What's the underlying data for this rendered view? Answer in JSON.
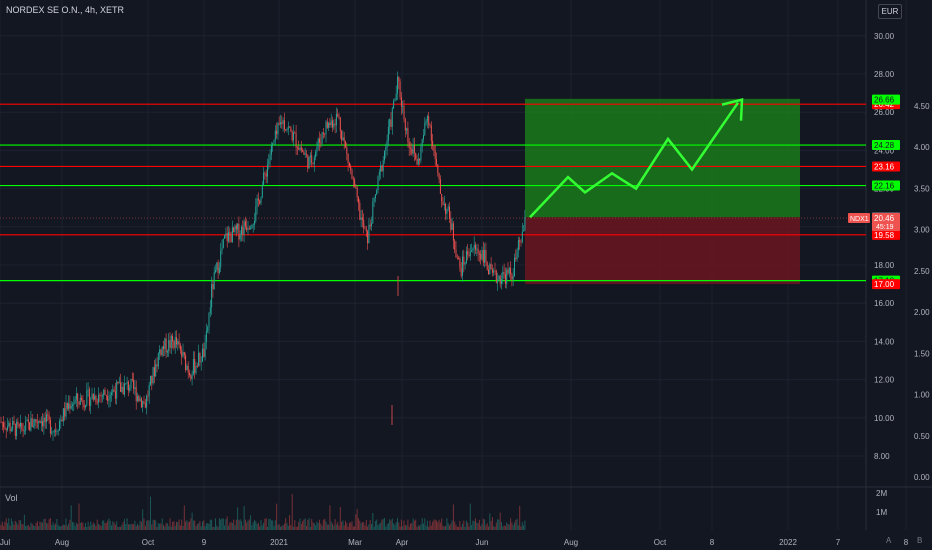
{
  "header": {
    "symbol_title": "NORDEX SE O.N., 4h, XETR",
    "currency": "EUR"
  },
  "volume_pane": {
    "label": "Vol",
    "ticks": [
      "2M",
      "1M"
    ]
  },
  "corner": {
    "auto": "A",
    "log": "B"
  },
  "colors": {
    "background": "#131722",
    "up": "#26a69a",
    "down": "#ef5350",
    "green_line": "#00ff00",
    "red_line": "#ff0000",
    "profit_zone": "#1b7a1b",
    "loss_zone": "#6b1520",
    "arrow": "#33ff33"
  },
  "chart_data": {
    "type": "candlestick",
    "title": "NORDEX SE O.N., 4h, XETR",
    "x_ticks": [
      "Jul",
      "Aug",
      "Oct",
      "9",
      "2021",
      "Mar",
      "Apr",
      "Jun",
      "Aug",
      "Oct",
      "8",
      "2022",
      "7",
      "8"
    ],
    "y_left_ticks": [
      8,
      10,
      12,
      14,
      16,
      18,
      20,
      22,
      24,
      26,
      28,
      30
    ],
    "y_right_ticks": [
      0.0,
      0.5,
      1.0,
      1.5,
      2.0,
      2.5,
      3.0,
      3.5,
      4.0,
      4.5
    ],
    "y_range": [
      7.0,
      31.0
    ],
    "horizontal_levels": [
      {
        "price": 26.42,
        "label": "26.42",
        "color": "red"
      },
      {
        "price": 24.28,
        "label": "24.28",
        "color": "green"
      },
      {
        "price": 23.16,
        "label": "23.16",
        "color": "red"
      },
      {
        "price": 22.16,
        "label": "22.16",
        "color": "green"
      },
      {
        "price": 19.58,
        "label": "19.58",
        "color": "red"
      },
      {
        "price": 17.18,
        "label": "17.18",
        "color": "green"
      }
    ],
    "price_tags": [
      {
        "price": 26.66,
        "label": "26.66",
        "color": "green"
      },
      {
        "price": 20.5,
        "label": "20.50",
        "color": "gray"
      },
      {
        "price": 17.0,
        "label": "17.00",
        "color": "red"
      }
    ],
    "last_price": {
      "symbol": "NDX1",
      "price": 20.46,
      "countdown": "45:19"
    },
    "position": {
      "entry": 20.5,
      "target": 26.7,
      "stop": 17.0
    },
    "projection_path": [
      20.5,
      22.6,
      21.8,
      22.8,
      22.0,
      24.6,
      23.0,
      26.5
    ],
    "ohlc_waypoints": [
      [
        0,
        9.8
      ],
      [
        20,
        9.3
      ],
      [
        40,
        10.0
      ],
      [
        55,
        9.4
      ],
      [
        70,
        10.8
      ],
      [
        100,
        11.2
      ],
      [
        130,
        11.7
      ],
      [
        145,
        10.7
      ],
      [
        160,
        13.6
      ],
      [
        175,
        14.0
      ],
      [
        190,
        12.4
      ],
      [
        205,
        13.5
      ],
      [
        212,
        16.8
      ],
      [
        225,
        19.4
      ],
      [
        240,
        19.8
      ],
      [
        255,
        20.6
      ],
      [
        270,
        23.8
      ],
      [
        282,
        25.6
      ],
      [
        295,
        24.6
      ],
      [
        310,
        23.3
      ],
      [
        325,
        25.2
      ],
      [
        338,
        25.8
      ],
      [
        350,
        23.0
      ],
      [
        360,
        20.6
      ],
      [
        367,
        19.3
      ],
      [
        378,
        22.3
      ],
      [
        390,
        25.3
      ],
      [
        398,
        27.6
      ],
      [
        408,
        24.6
      ],
      [
        418,
        23.3
      ],
      [
        428,
        26.0
      ],
      [
        440,
        21.8
      ],
      [
        450,
        20.4
      ],
      [
        460,
        17.7
      ],
      [
        470,
        18.9
      ],
      [
        483,
        18.6
      ],
      [
        492,
        17.3
      ],
      [
        500,
        17.4
      ],
      [
        512,
        17.5
      ],
      [
        520,
        19.2
      ],
      [
        527,
        20.5
      ]
    ]
  }
}
